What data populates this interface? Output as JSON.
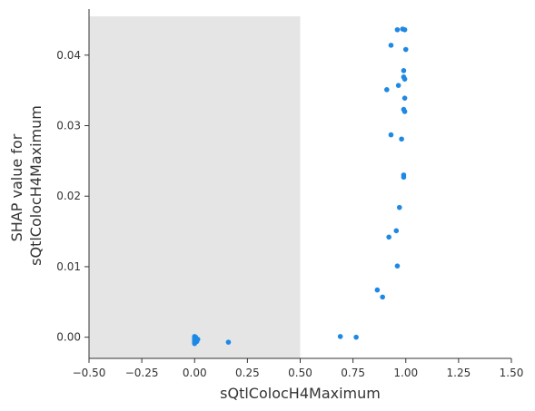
{
  "chart_data": {
    "type": "scatter",
    "xlabel": "sQtlColocH4Maximum",
    "ylabel_lines": [
      "SHAP value for",
      "sQtlColocH4Maximum"
    ],
    "xlim": [
      -0.5,
      1.5
    ],
    "ylim": [
      -0.003,
      0.0455
    ],
    "x_ticks": [
      -0.5,
      -0.25,
      0.0,
      0.25,
      0.5,
      0.75,
      1.0,
      1.25,
      1.5
    ],
    "x_tick_labels": [
      "−0.50",
      "−0.25",
      "0.00",
      "0.25",
      "0.50",
      "0.75",
      "1.00",
      "1.25",
      "1.50"
    ],
    "y_ticks": [
      0.0,
      0.01,
      0.02,
      0.03,
      0.04
    ],
    "y_tick_labels": [
      "0.00",
      "0.01",
      "0.02",
      "0.03",
      "0.04"
    ],
    "shaded_region": {
      "x": [
        -0.5,
        0.5
      ],
      "color": "#e5e5e5"
    },
    "point_color": "#1e88e5",
    "axis_color": "#333333",
    "points": [
      {
        "x": 0.0,
        "y": 0.0001
      },
      {
        "x": 0.0,
        "y": -0.0001
      },
      {
        "x": 0.0,
        "y": -0.0003
      },
      {
        "x": 0.0,
        "y": -0.0005
      },
      {
        "x": 0.0,
        "y": -0.0007
      },
      {
        "x": 0.0,
        "y": -0.0009
      },
      {
        "x": 0.003,
        "y": -0.0002
      },
      {
        "x": 0.003,
        "y": -0.0006
      },
      {
        "x": 0.005,
        "y": 0.0
      },
      {
        "x": 0.008,
        "y": -0.0004
      },
      {
        "x": 0.01,
        "y": -0.0006
      },
      {
        "x": 0.015,
        "y": -0.0003
      },
      {
        "x": 0.16,
        "y": -0.0007
      },
      {
        "x": 0.69,
        "y": 0.0001
      },
      {
        "x": 0.765,
        "y": 0.0
      },
      {
        "x": 0.865,
        "y": 0.0067
      },
      {
        "x": 0.89,
        "y": 0.0057
      },
      {
        "x": 0.96,
        "y": 0.0101
      },
      {
        "x": 0.92,
        "y": 0.0142
      },
      {
        "x": 0.955,
        "y": 0.0151
      },
      {
        "x": 0.97,
        "y": 0.0184
      },
      {
        "x": 0.99,
        "y": 0.0227
      },
      {
        "x": 0.99,
        "y": 0.023
      },
      {
        "x": 0.93,
        "y": 0.0287
      },
      {
        "x": 0.98,
        "y": 0.0281
      },
      {
        "x": 0.995,
        "y": 0.032
      },
      {
        "x": 0.99,
        "y": 0.0323
      },
      {
        "x": 0.995,
        "y": 0.0339
      },
      {
        "x": 0.91,
        "y": 0.0351
      },
      {
        "x": 0.965,
        "y": 0.0357
      },
      {
        "x": 0.995,
        "y": 0.0366
      },
      {
        "x": 0.99,
        "y": 0.0369
      },
      {
        "x": 0.99,
        "y": 0.0378
      },
      {
        "x": 0.93,
        "y": 0.0414
      },
      {
        "x": 1.0,
        "y": 0.0408
      },
      {
        "x": 0.96,
        "y": 0.0436
      },
      {
        "x": 0.985,
        "y": 0.0437
      },
      {
        "x": 0.995,
        "y": 0.0436
      }
    ]
  }
}
